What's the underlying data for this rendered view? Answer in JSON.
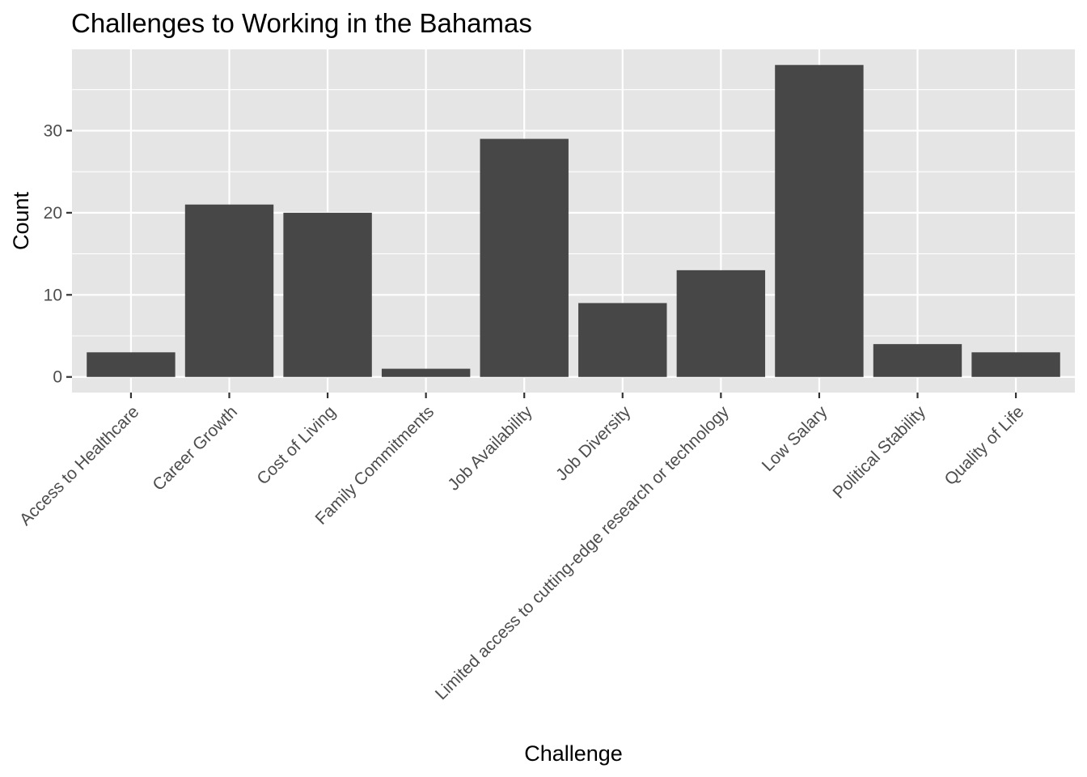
{
  "chart_data": {
    "type": "bar",
    "title": "Challenges to Working in the Bahamas",
    "xlabel": "Challenge",
    "ylabel": "Count",
    "categories": [
      "Access to Healthcare",
      "Career Growth",
      "Cost of Living",
      "Family Commitments",
      "Job Availability",
      "Job Diversity",
      "Limited access to cutting-edge research or technology",
      "Low Salary",
      "Political Stability",
      "Quality of Life"
    ],
    "values": [
      3,
      21,
      20,
      1,
      29,
      9,
      13,
      38,
      4,
      3
    ],
    "ylim": [
      -1.9,
      39.9
    ],
    "yticks": [
      0,
      10,
      20,
      30
    ],
    "grid": true,
    "legend": "none",
    "colors": {
      "panel": "#e5e5e5",
      "grid": "#ffffff",
      "bar": "#474747",
      "tick": "#333333"
    }
  }
}
